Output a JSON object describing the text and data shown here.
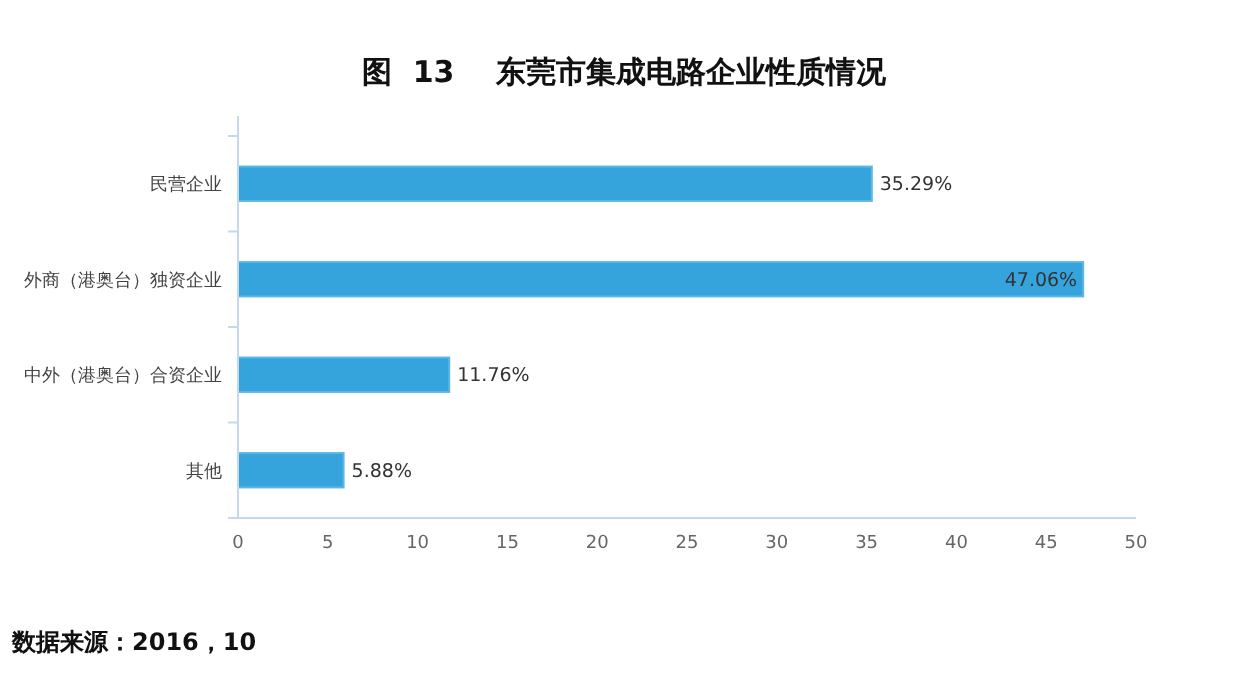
{
  "chart_data": {
    "type": "bar",
    "orientation": "horizontal",
    "title": "图  13    东莞市集成电路企业性质情况",
    "categories": [
      "民营企业",
      "外商（港奥台）独资企业",
      "中外（港奥台）合资企业",
      "其他"
    ],
    "values": [
      35.29,
      47.06,
      11.76,
      5.88
    ],
    "value_labels": [
      "35.29%",
      "47.06%",
      "11.76%",
      "5.88%"
    ],
    "color": "#35a4dc",
    "xlim": [
      0,
      50
    ],
    "xticks": [
      0,
      5,
      10,
      15,
      20,
      25,
      30,
      35,
      40,
      45,
      50
    ],
    "grid": false,
    "annotations": [
      "数据来源：2016，10"
    ]
  }
}
